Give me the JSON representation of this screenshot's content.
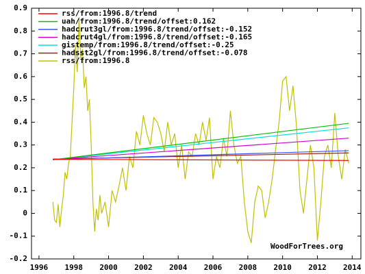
{
  "chart_data": {
    "type": "line",
    "annotation": "WoodForTrees.org",
    "xlim": [
      1995.57,
      2014.5
    ],
    "xticks": [
      1996,
      1998,
      2000,
      2002,
      2004,
      2006,
      2008,
      2010,
      2012,
      2014
    ],
    "ylim": [
      -0.2,
      0.9
    ],
    "yticks": [
      -0.2,
      -0.1,
      0,
      0.1,
      0.2,
      0.3,
      0.4,
      0.5,
      0.6,
      0.7,
      0.8,
      0.9
    ],
    "grid": false,
    "legend": "top-left",
    "series": [
      {
        "name": "rss/from:1996.8/trend",
        "color": "#ff0000",
        "x": [
          1996.8,
          2013.8
        ],
        "values": [
          0.237,
          0.232
        ]
      },
      {
        "name": "uah/from:1996.8/trend/offset:0.162",
        "color": "#00c000",
        "x": [
          1996.8,
          2013.8
        ],
        "values": [
          0.235,
          0.395
        ]
      },
      {
        "name": "hadcrut3gl/from:1996.8/trend/offset:-0.152",
        "color": "#3050ff",
        "x": [
          1996.8,
          2013.8
        ],
        "values": [
          0.236,
          0.275
        ]
      },
      {
        "name": "hadcrut4gl/from:1996.8/trend/offset:-0.165",
        "color": "#d000d0",
        "x": [
          1996.8,
          2013.8
        ],
        "values": [
          0.236,
          0.33
        ]
      },
      {
        "name": "gistemp/from:1996.8/trend/offset:-0.25",
        "color": "#00e0e0",
        "x": [
          1996.8,
          2013.8
        ],
        "values": [
          0.235,
          0.375
        ]
      },
      {
        "name": "hadsst2gl/from:1996.8/trend/offset:-0.078",
        "color": "#a02000",
        "x": [
          1996.8,
          2013.8
        ],
        "values": [
          0.238,
          0.265
        ]
      },
      {
        "name": "rss/from:1996.8",
        "color": "#c0c000",
        "x": [
          1996.8,
          1996.9,
          1997.0,
          1997.1,
          1997.2,
          1997.3,
          1997.4,
          1997.5,
          1997.6,
          1997.7,
          1997.8,
          1997.9,
          1998.0,
          1998.1,
          1998.2,
          1998.3,
          1998.4,
          1998.5,
          1998.6,
          1998.7,
          1998.8,
          1998.9,
          1999.0,
          1999.1,
          1999.2,
          1999.3,
          1999.4,
          1999.5,
          1999.6,
          1999.8,
          2000.0,
          2000.2,
          2000.4,
          2000.6,
          2000.8,
          2001.0,
          2001.2,
          2001.4,
          2001.6,
          2001.8,
          2002.0,
          2002.2,
          2002.4,
          2002.6,
          2002.8,
          2003.0,
          2003.2,
          2003.4,
          2003.6,
          2003.8,
          2004.0,
          2004.2,
          2004.4,
          2004.6,
          2004.8,
          2005.0,
          2005.2,
          2005.4,
          2005.6,
          2005.8,
          2006.0,
          2006.2,
          2006.4,
          2006.6,
          2006.8,
          2007.0,
          2007.2,
          2007.4,
          2007.6,
          2007.8,
          2008.0,
          2008.2,
          2008.4,
          2008.6,
          2008.8,
          2009.0,
          2009.2,
          2009.4,
          2009.6,
          2009.8,
          2010.0,
          2010.2,
          2010.4,
          2010.6,
          2010.8,
          2011.0,
          2011.2,
          2011.4,
          2011.6,
          2011.8,
          2012.0,
          2012.2,
          2012.4,
          2012.6,
          2012.8,
          2013.0,
          2013.2,
          2013.4,
          2013.6,
          2013.8
        ],
        "values": [
          0.05,
          -0.03,
          -0.04,
          0.04,
          -0.06,
          0.02,
          0.08,
          0.18,
          0.15,
          0.22,
          0.25,
          0.4,
          0.55,
          0.74,
          0.62,
          0.86,
          0.68,
          0.72,
          0.55,
          0.6,
          0.45,
          0.5,
          0.3,
          0.05,
          -0.08,
          0.02,
          -0.03,
          0.08,
          0.0,
          0.05,
          -0.06,
          0.1,
          0.05,
          0.12,
          0.2,
          0.1,
          0.25,
          0.2,
          0.36,
          0.3,
          0.43,
          0.35,
          0.3,
          0.42,
          0.4,
          0.35,
          0.27,
          0.4,
          0.3,
          0.35,
          0.2,
          0.3,
          0.15,
          0.27,
          0.25,
          0.35,
          0.3,
          0.4,
          0.32,
          0.42,
          0.15,
          0.25,
          0.2,
          0.33,
          0.25,
          0.45,
          0.3,
          0.22,
          0.25,
          0.05,
          -0.08,
          -0.13,
          0.05,
          0.12,
          0.1,
          -0.02,
          0.05,
          0.15,
          0.28,
          0.4,
          0.58,
          0.6,
          0.45,
          0.56,
          0.38,
          0.1,
          0.0,
          0.15,
          0.3,
          0.2,
          -0.12,
          0.05,
          0.25,
          0.3,
          0.2,
          0.44,
          0.25,
          0.15,
          0.28,
          0.22
        ]
      }
    ]
  }
}
